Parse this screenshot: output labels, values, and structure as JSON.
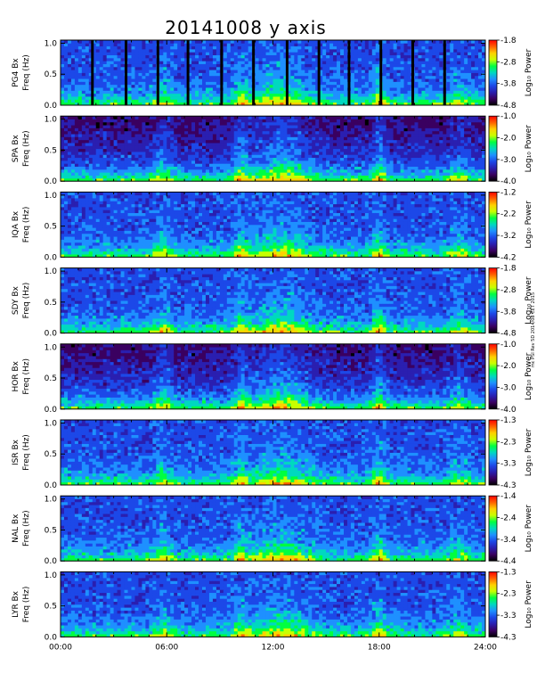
{
  "chart_data": {
    "type": "heatmap",
    "title": "20141008 y axis",
    "x_axis": {
      "range_hours": [
        0,
        24
      ],
      "tick_labels": [
        "00:00",
        "06:00",
        "12:00",
        "18:00",
        "24:00"
      ],
      "tick_values_hours": [
        0,
        6,
        12,
        18,
        24
      ]
    },
    "y_axis": {
      "label": "Freq (Hz)",
      "range": [
        0,
        1.05
      ],
      "tick_labels": [
        "0.0",
        "0.5",
        "1.0"
      ],
      "tick_values": [
        0,
        0.5,
        1.0
      ]
    },
    "colorbar_label": "Log₁₀ Power",
    "side_note": "mc PSI Rev 5D 2014/08 CET 2015",
    "panels": [
      {
        "station": "PG4 Bx",
        "cb_ticks": [
          "-1.8",
          "-2.8",
          "-3.8",
          "-4.8"
        ],
        "cb_values": [
          -1.8,
          -2.8,
          -3.8,
          -4.8
        ],
        "gaps_hours": [
          1.8,
          3.7,
          5.5,
          7.2,
          9.1,
          10.9,
          12.8,
          14.6,
          16.3,
          18.1,
          19.9,
          21.7
        ]
      },
      {
        "station": "SPA Bx",
        "cb_ticks": [
          "-1.0",
          "-2.0",
          "-3.0",
          "-4.0"
        ],
        "cb_values": [
          -1.0,
          -2.0,
          -3.0,
          -4.0
        ]
      },
      {
        "station": "IQA Bx",
        "cb_ticks": [
          "-1.2",
          "-2.2",
          "-3.2",
          "-4.2"
        ],
        "cb_values": [
          -1.2,
          -2.2,
          -3.2,
          -4.2
        ]
      },
      {
        "station": "SDY Bx",
        "cb_ticks": [
          "-1.8",
          "-2.8",
          "-3.8",
          "-4.8"
        ],
        "cb_values": [
          -1.8,
          -2.8,
          -3.8,
          -4.8
        ]
      },
      {
        "station": "HOR Bx",
        "cb_ticks": [
          "-1.0",
          "-2.0",
          "-3.0",
          "-4.0"
        ],
        "cb_values": [
          -1.0,
          -2.0,
          -3.0,
          -4.0
        ]
      },
      {
        "station": "ISR Bx",
        "cb_ticks": [
          "-1.3",
          "-2.3",
          "-3.3",
          "-4.3"
        ],
        "cb_values": [
          -1.3,
          -2.3,
          -3.3,
          -4.3
        ]
      },
      {
        "station": "NAL Bx",
        "cb_ticks": [
          "-1.4",
          "-2.4",
          "-3.4",
          "-4.4"
        ],
        "cb_values": [
          -1.4,
          -2.4,
          -3.4,
          -4.4
        ]
      },
      {
        "station": "LYR Bx",
        "cb_ticks": [
          "-1.3",
          "-2.3",
          "-3.3",
          "-4.3"
        ],
        "cb_values": [
          -1.3,
          -2.3,
          -3.3,
          -4.3
        ]
      }
    ],
    "activity_hours": [
      {
        "center": 5.8,
        "width": 0.5,
        "strength": 0.8
      },
      {
        "center": 10.2,
        "width": 0.4,
        "strength": 0.9
      },
      {
        "center": 12.5,
        "width": 1.6,
        "strength": 1.0
      },
      {
        "center": 18.0,
        "width": 0.4,
        "strength": 1.0
      },
      {
        "center": 22.5,
        "width": 0.6,
        "strength": 0.6
      }
    ],
    "colormap": [
      "#000000",
      "#3a0060",
      "#2a1fb0",
      "#1c48e8",
      "#1e90ff",
      "#00d8c0",
      "#00ff40",
      "#c8ff00",
      "#ffd000",
      "#ff6000",
      "#ff0000"
    ]
  }
}
